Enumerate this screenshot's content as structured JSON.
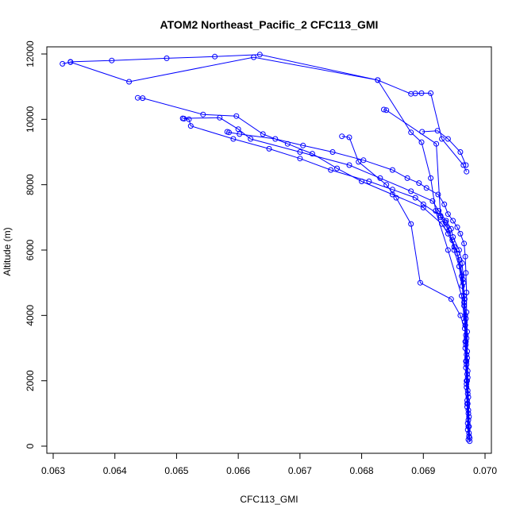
{
  "chart_data": {
    "type": "scatter",
    "title": "ATOM2 Northeast_Pacific_2 CFC113_GMI",
    "xlabel": "CFC113_GMI",
    "ylabel": "Altitude (m)",
    "xlim": [
      0.063,
      0.07
    ],
    "ylim": [
      0,
      12000
    ],
    "xticks": [
      0.063,
      0.064,
      0.065,
      0.066,
      0.067,
      0.068,
      0.069,
      0.07
    ],
    "yticks": [
      0,
      2000,
      4000,
      6000,
      8000,
      10000,
      12000
    ],
    "grid": false,
    "legend": "none",
    "color": "#0000ff",
    "marker": "open-circle",
    "series": [
      {
        "x": [
          0.06975,
          0.06974,
          0.06973,
          0.06972,
          0.06972,
          0.06971,
          0.06971,
          0.0697,
          0.0697,
          0.06969,
          0.06968,
          0.06966,
          0.0696,
          0.06955,
          0.06948,
          0.0694,
          0.06934,
          0.06924,
          0.06905,
          0.06893,
          0.06874,
          0.0685,
          0.06803,
          0.06753,
          0.06705,
          0.0666,
          0.06602,
          0.06585,
          0.06582
        ],
        "y": [
          150,
          600,
          1100,
          1700,
          2300,
          2900,
          3500,
          4100,
          4700,
          5300,
          5800,
          6200,
          6500,
          6700,
          6900,
          7100,
          7400,
          7700,
          7900,
          8050,
          8200,
          8450,
          8750,
          9000,
          9200,
          9400,
          9550,
          9600,
          9620
        ]
      },
      {
        "x": [
          0.06973,
          0.06972,
          0.06971,
          0.0697,
          0.0697,
          0.06969,
          0.06968,
          0.06966,
          0.06963,
          0.06958,
          0.0695,
          0.06942,
          0.06936,
          0.06928,
          0.069,
          0.06887,
          0.0685,
          0.06812,
          0.0675,
          0.067,
          0.0665,
          0.06592,
          0.06523,
          0.0652,
          0.06512
        ],
        "y": [
          200,
          700,
          1300,
          1900,
          2500,
          3100,
          3700,
          4300,
          4900,
          5500,
          6000,
          6600,
          6850,
          7050,
          7400,
          7600,
          7850,
          8100,
          8450,
          8800,
          9100,
          9400,
          9800,
          10000,
          10020
        ]
      },
      {
        "x": [
          0.06974,
          0.06973,
          0.06971,
          0.0697,
          0.06969,
          0.06968,
          0.06967,
          0.06966,
          0.06965,
          0.06963,
          0.06958,
          0.06948,
          0.06945,
          0.06937,
          0.06925,
          0.06915,
          0.0688,
          0.0683,
          0.0678,
          0.067,
          0.0662,
          0.066,
          0.0657,
          0.0651
        ],
        "y": [
          300,
          800,
          1400,
          2000,
          2600,
          3200,
          3800,
          4400,
          5000,
          5600,
          6000,
          6400,
          6650,
          6900,
          7200,
          7500,
          7800,
          8200,
          8600,
          9000,
          9400,
          9700,
          10050,
          10030
        ]
      },
      {
        "x": [
          0.06975,
          0.06974,
          0.06973,
          0.06972,
          0.06971,
          0.0697,
          0.06969,
          0.06967,
          0.06964,
          0.06959,
          0.0695,
          0.0694,
          0.0693,
          0.069,
          0.0685,
          0.068,
          0.0676,
          0.0672,
          0.0668,
          0.0664,
          0.06597,
          0.06543,
          0.06445,
          0.06437
        ],
        "y": [
          250,
          900,
          1500,
          2100,
          2700,
          3300,
          3900,
          4500,
          5100,
          5700,
          6100,
          6500,
          6800,
          7300,
          7700,
          8100,
          8500,
          8950,
          9250,
          9550,
          10100,
          10150,
          10650,
          10660
        ]
      },
      {
        "x": [
          0.06974,
          0.06973,
          0.06972,
          0.06971,
          0.0697,
          0.06969,
          0.06968,
          0.06966,
          0.06962,
          0.06955,
          0.06947,
          0.06938,
          0.06928,
          0.06921,
          0.0684,
          0.06836
        ],
        "y": [
          400,
          1000,
          1600,
          2200,
          2800,
          3400,
          4000,
          4600,
          5200,
          5900,
          6300,
          6700,
          7000,
          9250,
          10280,
          10300
        ]
      },
      {
        "x": [
          0.06972,
          0.06971,
          0.0697,
          0.06969,
          0.06968,
          0.06967,
          0.0696,
          0.06945,
          0.06895,
          0.0688,
          0.06856,
          0.0684,
          0.06795,
          0.0678,
          0.06768
        ],
        "y": [
          500,
          1200,
          1800,
          2400,
          3000,
          3600,
          4000,
          4500,
          5000,
          6800,
          7600,
          8000,
          8700,
          9450,
          9480
        ]
      },
      {
        "x": [
          0.06973,
          0.06972,
          0.06971,
          0.0697,
          0.06969,
          0.06967,
          0.06962,
          0.0694,
          0.0692,
          0.06912,
          0.06897,
          0.0688,
          0.06826,
          0.06625,
          0.06423,
          0.06328,
          0.06315
        ],
        "y": [
          600,
          1300,
          2000,
          2600,
          3200,
          3800,
          4600,
          6000,
          7200,
          8200,
          9300,
          9600,
          11200,
          11900,
          11150,
          11750,
          11700
        ]
      },
      {
        "x": [
          0.0697,
          0.06965,
          0.0693,
          0.06912,
          0.06897,
          0.06887,
          0.0688,
          0.06826,
          0.06635,
          0.06562,
          0.06484,
          0.06395,
          0.06328
        ],
        "y": [
          8400,
          8600,
          9400,
          10800,
          10800,
          10790,
          10780,
          11200,
          11980,
          11920,
          11870,
          11800,
          11760
        ]
      },
      {
        "x": [
          0.06969,
          0.0696,
          0.0694,
          0.06923,
          0.06898
        ],
        "y": [
          8600,
          9000,
          9400,
          9650,
          9620
        ]
      }
    ]
  }
}
